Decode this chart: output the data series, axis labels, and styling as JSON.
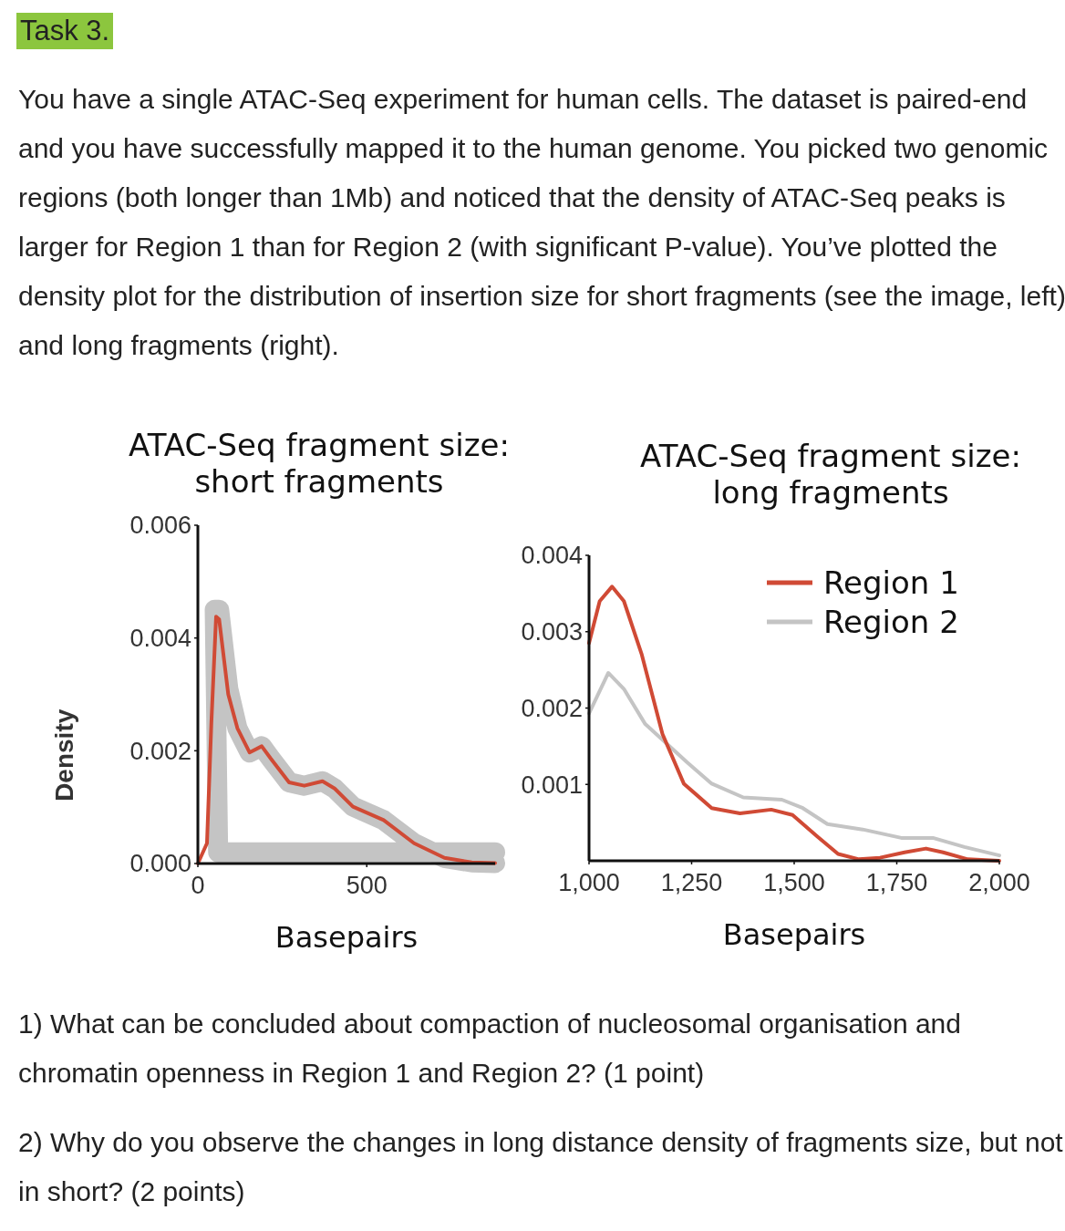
{
  "chart_data": [
    {
      "type": "line",
      "title": "ATAC-Seq fragment size:\nshort fragments",
      "xlabel": "Basepairs",
      "ylabel": "Density",
      "annotations": [
        "Task 3.",
        "You have a single ATAC-Seq experiment for human cells. The dataset is paired-end and you have successfully mapped it to the human genome. You picked two genomic regions (both longer than 1Mb) and noticed that the density of ATAC-Seq peaks is larger for Region 1 than for Region 2 (with significant P-value). You’ve plotted the density plot for the distribution of insertion size for short fragments (see the image, left) and long fragments (right).",
        "1) What can be concluded about compaction of nucleosomal organisation and chromatin openness in Region 1 and Region 2? (1 point)",
        "2) Why do you observe the changes in long distance density of fragments size, but not in short? (2 points)"
      ],
      "xlim": [
        0,
        880
      ],
      "ylim": [
        0,
        0.006
      ],
      "xticks": [
        0,
        500
      ],
      "yticks": [
        {
          "value": 0,
          "label": "0.000"
        },
        0.002,
        0.004,
        0.006
      ],
      "grid": false,
      "legend": false,
      "series": [
        {
          "color": "#d04a35",
          "x": [
            0,
            27,
            40,
            54,
            63,
            90,
            117,
            153,
            189,
            216,
            270,
            315,
            369,
            405,
            459,
            550,
            640,
            730,
            811,
            880
          ],
          "values": [
            0,
            0.00036,
            0.0025,
            0.00438,
            0.00433,
            0.003,
            0.0024,
            0.00197,
            0.00208,
            0.00186,
            0.00144,
            0.00138,
            0.00146,
            0.00133,
            0.00101,
            0.00077,
            0.00036,
            0.0001,
            2e-05,
            1e-05
          ]
        },
        {
          "color": "#c4c4c4",
          "x": [
            880,
            60,
            50,
            63,
            90,
            117,
            153,
            189,
            216,
            270,
            315,
            369,
            405,
            459,
            550,
            640,
            730,
            811,
            880
          ],
          "values": [
            0.0002,
            0.0002,
            0.0045,
            0.0045,
            0.0031,
            0.0024,
            0.00197,
            0.00208,
            0.00186,
            0.00144,
            0.00138,
            0.00146,
            0.00133,
            0.00101,
            0.00077,
            0.00036,
            0.0001,
            2e-05,
            1e-05
          ]
        }
      ]
    },
    {
      "type": "line",
      "title": "ATAC-Seq fragment size:\nlong fragments",
      "xlabel": "Basepairs",
      "xlim": [
        1000,
        2000
      ],
      "ylim": [
        0,
        0.004
      ],
      "xticks": [
        {
          "value": 1000,
          "label": "1,000"
        },
        {
          "value": 1250,
          "label": "1,250"
        },
        {
          "value": 1500,
          "label": "1,500"
        },
        {
          "value": 1750,
          "label": "1,750"
        },
        {
          "value": 2000,
          "label": "2,000"
        }
      ],
      "yticks": [
        0.001,
        0.002,
        0.003,
        0.004
      ],
      "grid": false,
      "legend": "top right",
      "series": [
        {
          "name": "Region 1",
          "color": "#d04a35",
          "x": [
            1000,
            1026,
            1056,
            1085,
            1128,
            1179,
            1231,
            1299,
            1368,
            1444,
            1496,
            1556,
            1607,
            1658,
            1709,
            1769,
            1821,
            1863,
            1923,
            2000
          ],
          "values": [
            0.00285,
            0.0034,
            0.00359,
            0.0034,
            0.00271,
            0.00166,
            0.00101,
            0.00069,
            0.00062,
            0.00067,
            0.0006,
            0.00032,
            9e-05,
            2e-05,
            4e-05,
            0.00011,
            0.00016,
            0.00011,
            2e-05,
            0
          ]
        },
        {
          "name": "Region 2",
          "color": "#c4c4c4",
          "x": [
            1000,
            1047,
            1085,
            1137,
            1188,
            1239,
            1299,
            1376,
            1470,
            1521,
            1581,
            1667,
            1761,
            1838,
            1915,
            2000
          ],
          "values": [
            0.00193,
            0.00246,
            0.00225,
            0.00179,
            0.00154,
            0.00129,
            0.00101,
            0.00083,
            0.0008,
            0.00069,
            0.00048,
            0.00041,
            0.0003,
            0.0003,
            0.00018,
            7e-05
          ]
        }
      ]
    }
  ]
}
